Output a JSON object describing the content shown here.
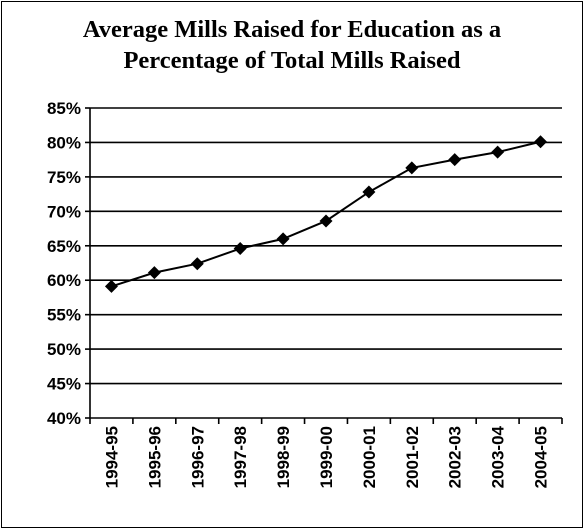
{
  "chart_data": {
    "type": "line",
    "title_lines": [
      "Average Mills Raised for Education as a",
      "Percentage of Total Mills Raised"
    ],
    "categories": [
      "1994-95",
      "1995-96",
      "1996-97",
      "1997-98",
      "1998-99",
      "1999-00",
      "2000-01",
      "2001-02",
      "2002-03",
      "2003-04",
      "2004-05"
    ],
    "series": [
      {
        "values": [
          59.1,
          61.1,
          62.4,
          64.6,
          66.0,
          68.6,
          72.8,
          76.3,
          77.5,
          78.6,
          80.1
        ]
      }
    ],
    "xlabel": "",
    "ylabel": "",
    "ylim": [
      40,
      85
    ],
    "ytick_step": 5,
    "ytick_labels": [
      "40%",
      "45%",
      "50%",
      "55%",
      "60%",
      "65%",
      "70%",
      "75%",
      "80%",
      "85%"
    ],
    "grid": "horizontal major gridlines",
    "marker": "diamond",
    "line_color": "#000000",
    "legend": "none"
  }
}
